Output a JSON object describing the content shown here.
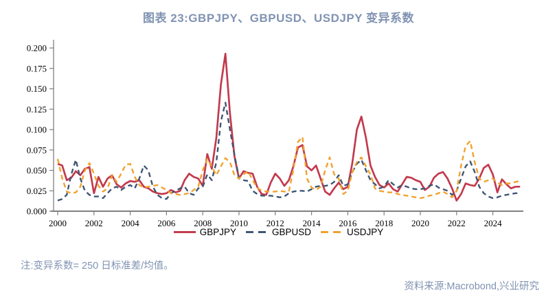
{
  "page": {
    "title": "图表 23:GBPJPY、GBPUSD、USDJPY 变异系数",
    "note": "注:变异系数= 250 日标准差/均值。",
    "source": "资料来源:Macrobond,兴业研究"
  },
  "colors": {
    "title_text": "#8093B2",
    "note_text": "#8093B2",
    "source_text": "#8093B2",
    "axis": "#7F7F7F",
    "gbpjpy": "#C23A4D",
    "gbpusd": "#3E5674",
    "usdjpy": "#F0A22E"
  },
  "chart_data": {
    "type": "line",
    "title": "图表 23:GBPJPY、GBPUSD、USDJPY 变异系数",
    "xlabel": "",
    "ylabel": "",
    "grid": false,
    "legend_position": "bottom",
    "xlim": [
      2000,
      2025.5
    ],
    "ylim": [
      0,
      0.2
    ],
    "x_ticks": [
      2000,
      2002,
      2004,
      2006,
      2008,
      2010,
      2012,
      2014,
      2016,
      2018,
      2020,
      2022,
      2024
    ],
    "y_ticks": [
      "0.000",
      "0.025",
      "0.050",
      "0.075",
      "0.100",
      "0.125",
      "0.150",
      "0.175",
      "0.200"
    ],
    "x_start": 2000.0,
    "x_step": 0.25,
    "series": [
      {
        "name": "GBPJPY",
        "style": "solid",
        "color": "#C23A4D",
        "values": [
          0.058,
          0.056,
          0.038,
          0.041,
          0.049,
          0.044,
          0.052,
          0.054,
          0.022,
          0.042,
          0.03,
          0.04,
          0.044,
          0.033,
          0.029,
          0.034,
          0.037,
          0.036,
          0.038,
          0.03,
          0.028,
          0.024,
          0.022,
          0.021,
          0.022,
          0.026,
          0.023,
          0.025,
          0.038,
          0.046,
          0.042,
          0.04,
          0.031,
          0.07,
          0.052,
          0.09,
          0.155,
          0.193,
          0.12,
          0.067,
          0.04,
          0.049,
          0.047,
          0.046,
          0.03,
          0.021,
          0.02,
          0.035,
          0.046,
          0.04,
          0.031,
          0.038,
          0.055,
          0.078,
          0.081,
          0.055,
          0.05,
          0.056,
          0.04,
          0.024,
          0.02,
          0.028,
          0.035,
          0.027,
          0.03,
          0.059,
          0.1,
          0.116,
          0.09,
          0.056,
          0.042,
          0.032,
          0.029,
          0.034,
          0.027,
          0.024,
          0.033,
          0.042,
          0.041,
          0.038,
          0.036,
          0.026,
          0.03,
          0.041,
          0.046,
          0.048,
          0.04,
          0.028,
          0.013,
          0.021,
          0.034,
          0.032,
          0.031,
          0.04,
          0.053,
          0.057,
          0.045,
          0.023,
          0.039,
          0.033,
          0.028,
          0.03,
          0.03
        ]
      },
      {
        "name": "GBPUSD",
        "style": "dashed",
        "color": "#3E5674",
        "values": [
          0.013,
          0.015,
          0.02,
          0.045,
          0.063,
          0.04,
          0.025,
          0.02,
          0.018,
          0.018,
          0.016,
          0.022,
          0.028,
          0.03,
          0.026,
          0.03,
          0.032,
          0.028,
          0.04,
          0.056,
          0.05,
          0.03,
          0.02,
          0.016,
          0.015,
          0.022,
          0.025,
          0.028,
          0.03,
          0.022,
          0.02,
          0.028,
          0.03,
          0.045,
          0.038,
          0.06,
          0.11,
          0.133,
          0.1,
          0.069,
          0.04,
          0.038,
          0.037,
          0.025,
          0.021,
          0.019,
          0.019,
          0.019,
          0.018,
          0.017,
          0.018,
          0.022,
          0.024,
          0.025,
          0.025,
          0.024,
          0.027,
          0.03,
          0.031,
          0.031,
          0.032,
          0.036,
          0.044,
          0.031,
          0.033,
          0.048,
          0.058,
          0.063,
          0.05,
          0.038,
          0.033,
          0.028,
          0.03,
          0.038,
          0.033,
          0.029,
          0.032,
          0.03,
          0.028,
          0.027,
          0.027,
          0.028,
          0.031,
          0.033,
          0.029,
          0.027,
          0.025,
          0.02,
          0.025,
          0.04,
          0.055,
          0.061,
          0.048,
          0.03,
          0.022,
          0.018,
          0.016,
          0.017,
          0.019,
          0.02,
          0.021,
          0.022,
          0.022
        ]
      },
      {
        "name": "USDJPY",
        "style": "dashed",
        "color": "#F0A22E",
        "values": [
          0.064,
          0.04,
          0.024,
          0.022,
          0.023,
          0.03,
          0.05,
          0.059,
          0.046,
          0.031,
          0.024,
          0.028,
          0.044,
          0.036,
          0.046,
          0.057,
          0.058,
          0.042,
          0.032,
          0.029,
          0.03,
          0.031,
          0.032,
          0.029,
          0.026,
          0.022,
          0.021,
          0.02,
          0.021,
          0.022,
          0.026,
          0.03,
          0.05,
          0.064,
          0.055,
          0.044,
          0.055,
          0.065,
          0.06,
          0.044,
          0.04,
          0.045,
          0.049,
          0.038,
          0.029,
          0.025,
          0.024,
          0.024,
          0.024,
          0.025,
          0.024,
          0.024,
          0.051,
          0.085,
          0.091,
          0.04,
          0.029,
          0.026,
          0.03,
          0.05,
          0.066,
          0.045,
          0.04,
          0.021,
          0.025,
          0.048,
          0.06,
          0.066,
          0.055,
          0.045,
          0.028,
          0.025,
          0.024,
          0.023,
          0.023,
          0.021,
          0.02,
          0.019,
          0.018,
          0.017,
          0.016,
          0.017,
          0.019,
          0.02,
          0.022,
          0.024,
          0.021,
          0.017,
          0.025,
          0.056,
          0.08,
          0.086,
          0.06,
          0.04,
          0.036,
          0.038,
          0.04,
          0.035,
          0.032,
          0.034,
          0.034,
          0.036,
          0.037
        ]
      }
    ]
  }
}
